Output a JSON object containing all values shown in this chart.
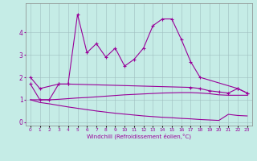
{
  "xlabel": "Windchill (Refroidissement éolien,°C)",
  "x": [
    0,
    1,
    2,
    3,
    4,
    5,
    6,
    7,
    8,
    9,
    10,
    11,
    12,
    13,
    14,
    15,
    16,
    17,
    18,
    19,
    20,
    21,
    22,
    23
  ],
  "line1_x": [
    0,
    1,
    3,
    4,
    5,
    6,
    7,
    8,
    9,
    10,
    11,
    12,
    13,
    14,
    15,
    16,
    17,
    18,
    22,
    23
  ],
  "line1_y": [
    2.0,
    1.5,
    1.7,
    1.7,
    4.8,
    3.1,
    3.5,
    2.9,
    3.3,
    2.5,
    2.8,
    3.3,
    4.3,
    4.6,
    4.6,
    3.7,
    2.7,
    2.0,
    1.5,
    1.3
  ],
  "line2_x": [
    0,
    1,
    2,
    3,
    4,
    17,
    18,
    19,
    20,
    21,
    22,
    23
  ],
  "line2_y": [
    1.7,
    1.0,
    1.0,
    1.7,
    1.7,
    1.55,
    1.5,
    1.4,
    1.35,
    1.3,
    1.5,
    1.3
  ],
  "line3_x": [
    0,
    1,
    2,
    3,
    4,
    5,
    6,
    7,
    8,
    9,
    10,
    11,
    12,
    13,
    14,
    15,
    16,
    17,
    18,
    19,
    20,
    21,
    22,
    23
  ],
  "line3_y": [
    1.0,
    1.0,
    1.0,
    1.02,
    1.05,
    1.08,
    1.1,
    1.13,
    1.16,
    1.19,
    1.22,
    1.24,
    1.26,
    1.28,
    1.3,
    1.31,
    1.32,
    1.32,
    1.3,
    1.27,
    1.22,
    1.2,
    1.2,
    1.2
  ],
  "line4_x": [
    0,
    1,
    2,
    3,
    4,
    5,
    6,
    7,
    8,
    9,
    10,
    11,
    12,
    13,
    14,
    15,
    16,
    17,
    18,
    19,
    20,
    21,
    22,
    23
  ],
  "line4_y": [
    1.0,
    0.88,
    0.82,
    0.75,
    0.68,
    0.62,
    0.56,
    0.5,
    0.45,
    0.4,
    0.36,
    0.32,
    0.28,
    0.25,
    0.22,
    0.2,
    0.17,
    0.15,
    0.12,
    0.1,
    0.08,
    0.35,
    0.3,
    0.28
  ],
  "ylim": [
    -0.15,
    5.3
  ],
  "yticks": [
    0,
    1,
    2,
    3,
    4
  ],
  "bg_color": "#c5ece6",
  "line_color": "#990099",
  "grid_color": "#9fbfbf"
}
